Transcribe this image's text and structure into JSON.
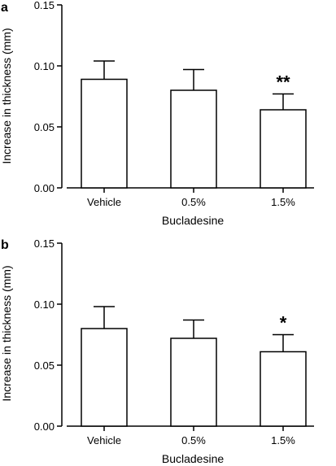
{
  "figure": {
    "panels": [
      {
        "panel_label": "a",
        "xlabel": "Bucladesine",
        "ylabel": "Increase in thickness (mm)",
        "ytick_labels": [
          "0.00",
          "0.05",
          "0.10",
          "0.15"
        ],
        "significance": [
          {
            "category": "1.5%",
            "text": "**"
          }
        ]
      },
      {
        "panel_label": "b",
        "xlabel": "Bucladesine",
        "ylabel": "Increase in thickness (mm)",
        "ytick_labels": [
          "0.00",
          "0.05",
          "0.10",
          "0.15"
        ],
        "significance": [
          {
            "category": "1.5%",
            "text": "*"
          }
        ]
      }
    ]
  },
  "chart_data": [
    {
      "type": "bar",
      "panel": "a",
      "categories": [
        "Vehicle",
        "0.5%",
        "1.5%"
      ],
      "values": [
        0.089,
        0.08,
        0.064
      ],
      "error_bars": [
        0.015,
        0.017,
        0.013
      ],
      "xlabel": "Bucladesine",
      "ylabel": "Increase in thickness (mm)",
      "ylim": [
        0,
        0.15
      ],
      "yticks": [
        0.0,
        0.05,
        0.1,
        0.15
      ],
      "grid": false,
      "bar_fill": "#ffffff",
      "bar_stroke": "#000000"
    },
    {
      "type": "bar",
      "panel": "b",
      "categories": [
        "Vehicle",
        "0.5%",
        "1.5%"
      ],
      "values": [
        0.08,
        0.072,
        0.061
      ],
      "error_bars": [
        0.018,
        0.015,
        0.014
      ],
      "xlabel": "Bucladesine",
      "ylabel": "Increase in thickness (mm)",
      "ylim": [
        0,
        0.15
      ],
      "yticks": [
        0.0,
        0.05,
        0.1,
        0.15
      ],
      "grid": false,
      "bar_fill": "#ffffff",
      "bar_stroke": "#000000"
    }
  ]
}
